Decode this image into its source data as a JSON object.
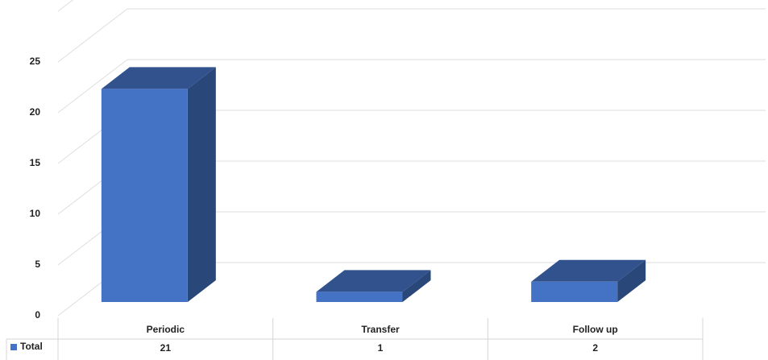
{
  "chart_data": {
    "type": "bar3d",
    "categories": [
      "Periodic",
      "Transfer",
      "Follow up"
    ],
    "series": [
      {
        "name": "Total",
        "color": "#4472c4",
        "values": [
          21,
          1,
          2
        ]
      }
    ],
    "ylim": [
      0,
      30
    ],
    "yticks": [
      0,
      5,
      10,
      15,
      20,
      25
    ],
    "grid": true,
    "legend": "table"
  }
}
